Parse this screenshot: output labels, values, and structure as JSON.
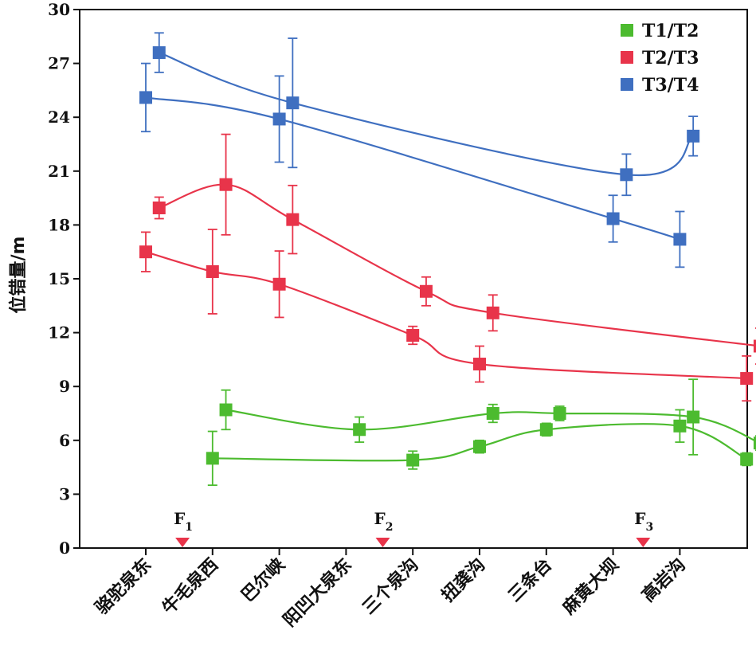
{
  "chart_data": {
    "type": "scatter",
    "ylabel": "位错量/m",
    "xlabel": "",
    "ylim": [
      0,
      30
    ],
    "yticks": [
      0,
      3,
      6,
      9,
      12,
      15,
      18,
      21,
      24,
      27,
      30
    ],
    "categories": [
      "骆驼泉东",
      "牛毛泉西",
      "巴尔峡",
      "阳凹大泉东",
      "三个泉沟",
      "扭龚沟",
      "三条台",
      "麻黄大坝",
      "高岩沟"
    ],
    "legend_position": "top-right",
    "grid": false,
    "faults": [
      {
        "label": "F",
        "sub": "1",
        "x": 0.55
      },
      {
        "label": "F",
        "sub": "2",
        "x": 3.55
      },
      {
        "label": "F",
        "sub": "3",
        "x": 7.45
      }
    ],
    "series": [
      {
        "name": "T1/T2",
        "color": "#4cbb2f",
        "curves": [
          [
            {
              "x": 1.0,
              "y": 5.0,
              "err": 1.5
            },
            {
              "x": 4.0,
              "y": 4.9,
              "err": 0.5
            },
            {
              "x": 5.0,
              "y": 5.65,
              "err": 0.35
            },
            {
              "x": 6.0,
              "y": 6.6,
              "err": 0.35
            },
            {
              "x": 8.0,
              "y": 6.8,
              "err": 0.9
            },
            {
              "x": 9.0,
              "y": 4.95,
              "err": 0.35
            }
          ],
          [
            {
              "x": 1.2,
              "y": 7.7,
              "err": 1.1
            },
            {
              "x": 3.2,
              "y": 6.6,
              "err": 0.7
            },
            {
              "x": 5.2,
              "y": 7.5,
              "err": 0.5
            },
            {
              "x": 6.2,
              "y": 7.5,
              "err": 0.4
            },
            {
              "x": 8.2,
              "y": 7.3,
              "err": 2.1
            },
            {
              "x": 9.2,
              "y": 5.85,
              "err": 0.4
            }
          ]
        ]
      },
      {
        "name": "T2/T3",
        "color": "#e8344a",
        "curves": [
          [
            {
              "x": 0.0,
              "y": 16.5,
              "err": 1.1
            },
            {
              "x": 1.0,
              "y": 15.4,
              "err": 2.35
            },
            {
              "x": 2.0,
              "y": 14.7,
              "err": 1.85
            },
            {
              "x": 4.0,
              "y": 11.85,
              "err": 0.5
            },
            {
              "x": 5.0,
              "y": 10.25,
              "err": 1.0
            },
            {
              "x": 9.0,
              "y": 9.45,
              "err": 1.25
            }
          ],
          [
            {
              "x": 0.2,
              "y": 18.95,
              "err": 0.6
            },
            {
              "x": 1.2,
              "y": 20.25,
              "err": 2.8
            },
            {
              "x": 2.2,
              "y": 18.3,
              "err": 1.9
            },
            {
              "x": 4.2,
              "y": 14.3,
              "err": 0.8
            },
            {
              "x": 5.2,
              "y": 13.1,
              "err": 1.0
            },
            {
              "x": 9.2,
              "y": 11.25,
              "err": 1.0
            }
          ]
        ]
      },
      {
        "name": "T3/T4",
        "color": "#3f6fc0",
        "curves": [
          [
            {
              "x": 0.0,
              "y": 25.1,
              "err": 1.9
            },
            {
              "x": 2.0,
              "y": 23.9,
              "err": 2.4
            },
            {
              "x": 7.0,
              "y": 18.35,
              "err": 1.3
            },
            {
              "x": 8.0,
              "y": 17.2,
              "err": 1.55
            }
          ],
          [
            {
              "x": 0.2,
              "y": 27.6,
              "err": 1.1
            },
            {
              "x": 2.2,
              "y": 24.8,
              "err": 3.6
            },
            {
              "x": 7.2,
              "y": 20.8,
              "err": 1.15
            },
            {
              "x": 8.2,
              "y": 22.95,
              "err": 1.1
            }
          ]
        ]
      }
    ]
  }
}
